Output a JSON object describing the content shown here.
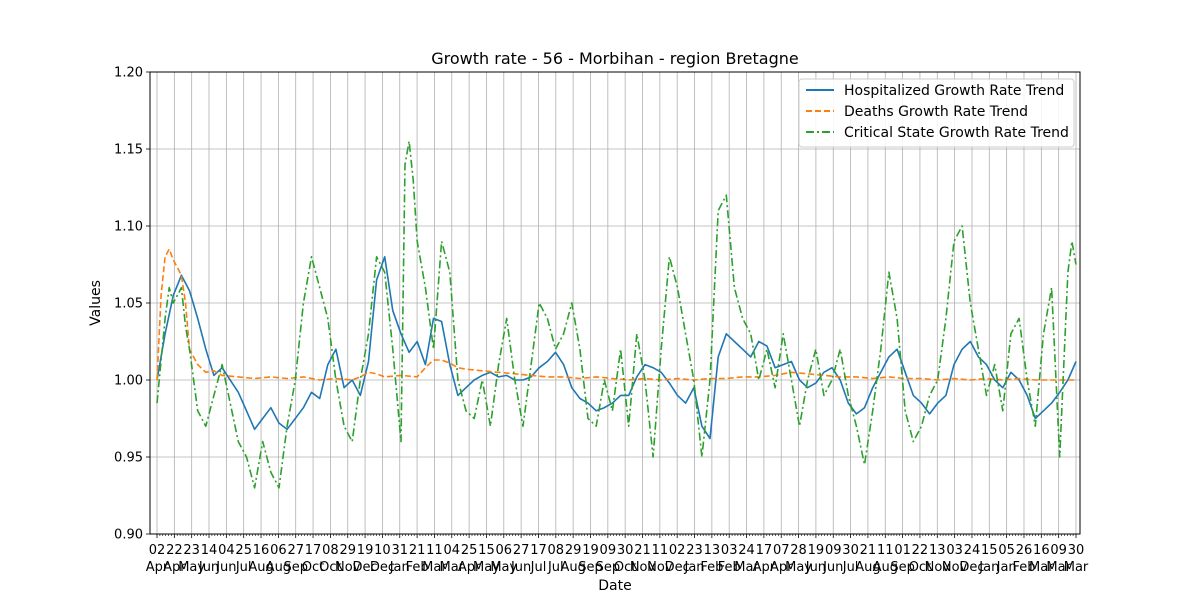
{
  "chart_data": {
    "type": "line",
    "title": "Growth rate - 56 - Morbihan - region Bretagne",
    "xlabel": "Date",
    "ylabel": "Values",
    "ylim": [
      0.9,
      1.2
    ],
    "yticks": [
      "0.90",
      "0.95",
      "1.00",
      "1.05",
      "1.10",
      "1.15",
      "1.20"
    ],
    "grid": true,
    "legend_position": "top-right",
    "x_tick_days": [
      "02",
      "22",
      "23",
      "14",
      "04",
      "25",
      "16",
      "06",
      "27",
      "17",
      "08",
      "29",
      "19",
      "10",
      "31",
      "21",
      "11",
      "04",
      "25",
      "15",
      "06",
      "27",
      "17",
      "08",
      "29",
      "19",
      "09",
      "30",
      "21",
      "11",
      "02",
      "23",
      "13",
      "03",
      "24",
      "17",
      "07",
      "28",
      "19",
      "09",
      "30",
      "21",
      "11",
      "01",
      "22",
      "13",
      "03",
      "24",
      "15",
      "05",
      "26",
      "16",
      "09",
      "30"
    ],
    "x_tick_months": [
      "Apr",
      "Apr",
      "May",
      "Jun",
      "Jun",
      "Jul",
      "Aug",
      "Aug",
      "Sep",
      "Oct",
      "Oct",
      "Nov",
      "Dec",
      "Dec",
      "Jan",
      "Feb",
      "Mar",
      "Mar",
      "Apr",
      "May",
      "May",
      "Jun",
      "Jul",
      "Jul",
      "Aug",
      "Sep",
      "Sep",
      "Oct",
      "Nov",
      "Nov",
      "Dec",
      "Jan",
      "Feb",
      "Feb",
      "Mar",
      "Apr",
      "Apr",
      "May",
      "Jun",
      "Jun",
      "Jul",
      "Aug",
      "Aug",
      "Sep",
      "Oct",
      "Nov",
      "Nov",
      "Dec",
      "Jan",
      "Jan",
      "Feb",
      "Mar",
      "Mar",
      "Mar"
    ],
    "series": [
      {
        "name": "Hospitalized Growth Rate Trend",
        "color": "#1f77b4",
        "style": "solid",
        "points": [
          [
            0,
            1.0
          ],
          [
            1,
            1.03
          ],
          [
            2,
            1.055
          ],
          [
            3,
            1.068
          ],
          [
            4,
            1.058
          ],
          [
            5,
            1.04
          ],
          [
            6,
            1.02
          ],
          [
            7,
            1.003
          ],
          [
            8,
            1.008
          ],
          [
            9,
            1.0
          ],
          [
            10,
            0.992
          ],
          [
            11,
            0.98
          ],
          [
            12,
            0.968
          ],
          [
            13,
            0.975
          ],
          [
            14,
            0.982
          ],
          [
            15,
            0.972
          ],
          [
            16,
            0.968
          ],
          [
            17,
            0.975
          ],
          [
            18,
            0.982
          ],
          [
            19,
            0.992
          ],
          [
            20,
            0.988
          ],
          [
            21,
            1.01
          ],
          [
            22,
            1.02
          ],
          [
            23,
            0.995
          ],
          [
            24,
            1.0
          ],
          [
            25,
            0.99
          ],
          [
            26,
            1.012
          ],
          [
            27,
            1.065
          ],
          [
            28,
            1.08
          ],
          [
            29,
            1.045
          ],
          [
            30,
            1.03
          ],
          [
            31,
            1.018
          ],
          [
            32,
            1.025
          ],
          [
            33,
            1.01
          ],
          [
            34,
            1.04
          ],
          [
            35,
            1.038
          ],
          [
            36,
            1.01
          ],
          [
            37,
            0.99
          ],
          [
            38,
            0.995
          ],
          [
            39,
            1.0
          ],
          [
            40,
            1.003
          ],
          [
            41,
            1.005
          ],
          [
            42,
            1.002
          ],
          [
            43,
            1.003
          ],
          [
            44,
            1.0
          ],
          [
            45,
            1.0
          ],
          [
            46,
            1.002
          ],
          [
            47,
            1.008
          ],
          [
            48,
            1.012
          ],
          [
            49,
            1.018
          ],
          [
            50,
            1.01
          ],
          [
            51,
            0.995
          ],
          [
            52,
            0.988
          ],
          [
            53,
            0.985
          ],
          [
            54,
            0.98
          ],
          [
            55,
            0.982
          ],
          [
            56,
            0.985
          ],
          [
            57,
            0.99
          ],
          [
            58,
            0.99
          ],
          [
            59,
            1.002
          ],
          [
            60,
            1.01
          ],
          [
            61,
            1.008
          ],
          [
            62,
            1.005
          ],
          [
            63,
            0.998
          ],
          [
            64,
            0.99
          ],
          [
            65,
            0.985
          ],
          [
            66,
            0.995
          ],
          [
            67,
            0.97
          ],
          [
            68,
            0.962
          ],
          [
            69,
            1.015
          ],
          [
            70,
            1.03
          ],
          [
            71,
            1.025
          ],
          [
            72,
            1.02
          ],
          [
            73,
            1.015
          ],
          [
            74,
            1.025
          ],
          [
            75,
            1.022
          ],
          [
            76,
            1.008
          ],
          [
            77,
            1.01
          ],
          [
            78,
            1.012
          ],
          [
            79,
            1.0
          ],
          [
            80,
            0.995
          ],
          [
            81,
            0.998
          ],
          [
            82,
            1.005
          ],
          [
            83,
            1.008
          ],
          [
            84,
            1.0
          ],
          [
            85,
            0.985
          ],
          [
            86,
            0.978
          ],
          [
            87,
            0.982
          ],
          [
            88,
            0.995
          ],
          [
            89,
            1.005
          ],
          [
            90,
            1.015
          ],
          [
            91,
            1.02
          ],
          [
            92,
            1.005
          ],
          [
            93,
            0.99
          ],
          [
            94,
            0.985
          ],
          [
            95,
            0.978
          ],
          [
            96,
            0.985
          ],
          [
            97,
            0.99
          ],
          [
            98,
            1.01
          ],
          [
            99,
            1.02
          ],
          [
            100,
            1.025
          ],
          [
            101,
            1.015
          ],
          [
            102,
            1.01
          ],
          [
            103,
            1.0
          ],
          [
            104,
            0.995
          ],
          [
            105,
            1.005
          ],
          [
            106,
            1.0
          ],
          [
            107,
            0.99
          ],
          [
            108,
            0.975
          ],
          [
            109,
            0.98
          ],
          [
            110,
            0.985
          ],
          [
            111,
            0.992
          ],
          [
            112,
            1.0
          ],
          [
            113,
            1.012
          ]
        ]
      },
      {
        "name": "Deaths Growth Rate Trend",
        "color": "#ff7f0e",
        "style": "dashed",
        "points": [
          [
            0,
            1.0
          ],
          [
            0.5,
            1.055
          ],
          [
            1,
            1.08
          ],
          [
            1.5,
            1.085
          ],
          [
            2,
            1.078
          ],
          [
            3,
            1.068
          ],
          [
            3.5,
            1.05
          ],
          [
            4,
            1.02
          ],
          [
            5,
            1.01
          ],
          [
            6,
            1.005
          ],
          [
            7,
            1.006
          ],
          [
            8,
            1.003
          ],
          [
            10,
            1.002
          ],
          [
            12,
            1.001
          ],
          [
            14,
            1.002
          ],
          [
            16,
            1.001
          ],
          [
            18,
            1.002
          ],
          [
            20,
            1.0
          ],
          [
            22,
            1.001
          ],
          [
            24,
            1.0
          ],
          [
            25,
            1.002
          ],
          [
            26,
            1.005
          ],
          [
            27,
            1.004
          ],
          [
            28,
            1.002
          ],
          [
            30,
            1.003
          ],
          [
            32,
            1.002
          ],
          [
            33,
            1.008
          ],
          [
            34,
            1.013
          ],
          [
            35,
            1.013
          ],
          [
            36,
            1.011
          ],
          [
            37,
            1.008
          ],
          [
            38,
            1.007
          ],
          [
            40,
            1.006
          ],
          [
            42,
            1.005
          ],
          [
            44,
            1.004
          ],
          [
            46,
            1.003
          ],
          [
            48,
            1.002
          ],
          [
            50,
            1.002
          ],
          [
            52,
            1.001
          ],
          [
            54,
            1.002
          ],
          [
            56,
            1.001
          ],
          [
            58,
            1.0
          ],
          [
            60,
            1.001
          ],
          [
            62,
            1.0
          ],
          [
            64,
            1.001
          ],
          [
            66,
            1.0
          ],
          [
            68,
            1.001
          ],
          [
            70,
            1.001
          ],
          [
            72,
            1.002
          ],
          [
            74,
            1.002
          ],
          [
            76,
            1.003
          ],
          [
            78,
            1.005
          ],
          [
            80,
            1.004
          ],
          [
            82,
            1.003
          ],
          [
            84,
            1.002
          ],
          [
            86,
            1.002
          ],
          [
            88,
            1.001
          ],
          [
            90,
            1.002
          ],
          [
            92,
            1.001
          ],
          [
            94,
            1.001
          ],
          [
            96,
            1.0
          ],
          [
            98,
            1.001
          ],
          [
            100,
            1.0
          ],
          [
            102,
            1.001
          ],
          [
            104,
            1.0
          ],
          [
            106,
            1.001
          ],
          [
            108,
            1.0
          ],
          [
            110,
            1.0
          ],
          [
            112,
            1.0
          ],
          [
            113,
            1.0
          ]
        ]
      },
      {
        "name": "Critical State Growth Rate Trend",
        "color": "#2ca02c",
        "style": "dashdot",
        "points": [
          [
            0,
            0.985
          ],
          [
            1,
            1.04
          ],
          [
            1.5,
            1.06
          ],
          [
            2,
            1.05
          ],
          [
            3,
            1.06
          ],
          [
            3.5,
            1.035
          ],
          [
            4,
            1.02
          ],
          [
            5,
            0.98
          ],
          [
            6,
            0.97
          ],
          [
            7,
            0.99
          ],
          [
            8,
            1.01
          ],
          [
            9,
            0.985
          ],
          [
            10,
            0.96
          ],
          [
            11,
            0.95
          ],
          [
            12,
            0.93
          ],
          [
            13,
            0.96
          ],
          [
            14,
            0.94
          ],
          [
            15,
            0.93
          ],
          [
            16,
            0.97
          ],
          [
            17,
            1.0
          ],
          [
            18,
            1.05
          ],
          [
            19,
            1.08
          ],
          [
            20,
            1.06
          ],
          [
            21,
            1.04
          ],
          [
            22,
            1.0
          ],
          [
            23,
            0.97
          ],
          [
            24,
            0.96
          ],
          [
            25,
            1.0
          ],
          [
            26,
            1.03
          ],
          [
            27,
            1.08
          ],
          [
            28,
            1.07
          ],
          [
            29,
            1.02
          ],
          [
            30,
            0.96
          ],
          [
            30.5,
            1.14
          ],
          [
            31,
            1.155
          ],
          [
            31.5,
            1.13
          ],
          [
            32,
            1.09
          ],
          [
            33,
            1.06
          ],
          [
            34,
            1.02
          ],
          [
            35,
            1.09
          ],
          [
            36,
            1.07
          ],
          [
            37,
            1.0
          ],
          [
            38,
            0.98
          ],
          [
            39,
            0.975
          ],
          [
            40,
            1.0
          ],
          [
            41,
            0.97
          ],
          [
            42,
            1.01
          ],
          [
            43,
            1.04
          ],
          [
            44,
            1.0
          ],
          [
            45,
            0.97
          ],
          [
            46,
            1.01
          ],
          [
            47,
            1.05
          ],
          [
            48,
            1.04
          ],
          [
            49,
            1.02
          ],
          [
            50,
            1.03
          ],
          [
            51,
            1.05
          ],
          [
            52,
            1.02
          ],
          [
            53,
            0.975
          ],
          [
            54,
            0.97
          ],
          [
            55,
            1.0
          ],
          [
            56,
            0.98
          ],
          [
            57,
            1.02
          ],
          [
            58,
            0.97
          ],
          [
            59,
            1.03
          ],
          [
            60,
            1.0
          ],
          [
            61,
            0.95
          ],
          [
            62,
            1.02
          ],
          [
            63,
            1.08
          ],
          [
            64,
            1.06
          ],
          [
            65,
            1.03
          ],
          [
            66,
            1.0
          ],
          [
            67,
            0.95
          ],
          [
            68,
            1.0
          ],
          [
            69,
            1.11
          ],
          [
            70,
            1.12
          ],
          [
            71,
            1.06
          ],
          [
            72,
            1.04
          ],
          [
            73,
            1.03
          ],
          [
            74,
            1.0
          ],
          [
            75,
            1.02
          ],
          [
            76,
            0.995
          ],
          [
            77,
            1.03
          ],
          [
            78,
            1.0
          ],
          [
            79,
            0.97
          ],
          [
            80,
            1.0
          ],
          [
            81,
            1.02
          ],
          [
            82,
            0.99
          ],
          [
            83,
            1.0
          ],
          [
            84,
            1.02
          ],
          [
            85,
            0.99
          ],
          [
            86,
            0.97
          ],
          [
            87,
            0.945
          ],
          [
            88,
            0.98
          ],
          [
            89,
            1.02
          ],
          [
            90,
            1.07
          ],
          [
            91,
            1.04
          ],
          [
            92,
            0.98
          ],
          [
            93,
            0.96
          ],
          [
            94,
            0.97
          ],
          [
            95,
            0.99
          ],
          [
            96,
            1.0
          ],
          [
            97,
            1.04
          ],
          [
            98,
            1.09
          ],
          [
            99,
            1.1
          ],
          [
            100,
            1.05
          ],
          [
            101,
            1.02
          ],
          [
            102,
            0.99
          ],
          [
            103,
            1.01
          ],
          [
            104,
            0.98
          ],
          [
            105,
            1.03
          ],
          [
            106,
            1.04
          ],
          [
            107,
            1.0
          ],
          [
            108,
            0.97
          ],
          [
            109,
            1.03
          ],
          [
            110,
            1.06
          ],
          [
            111,
            0.95
          ],
          [
            112,
            1.07
          ],
          [
            112.5,
            1.09
          ],
          [
            113,
            1.075
          ]
        ]
      }
    ]
  }
}
